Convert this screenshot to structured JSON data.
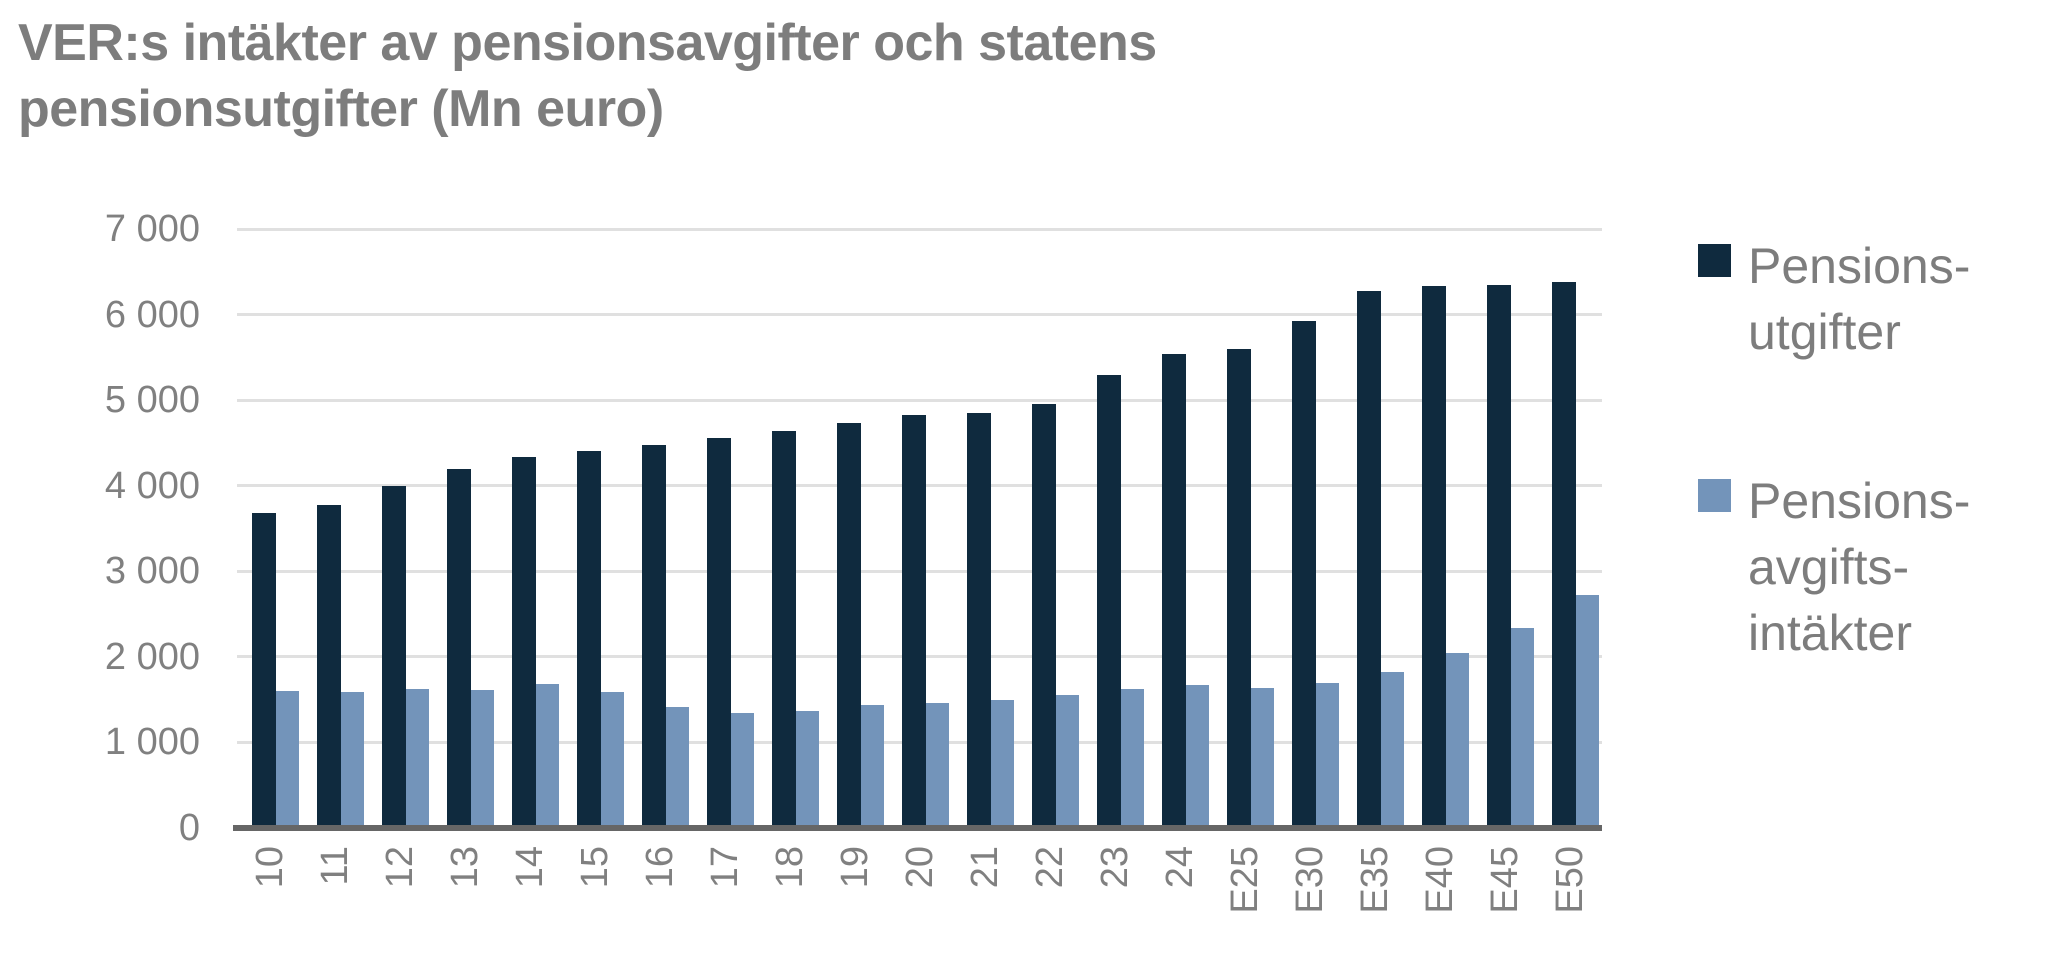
{
  "title": {
    "text": "VER:s intäkter av pensionsavgifter och statens pensionsutgifter (Mn euro)",
    "line1": "VER:s intäkter av pensionsavgifter och statens",
    "line2": "pensionsutgifter (Mn euro)",
    "color": "#7d7d7d"
  },
  "colors": {
    "background": "#ffffff",
    "title_text": "#7d7d7d",
    "axis_tick_text": "#808080",
    "gridline": "#e0e0e0",
    "axis_line": "#666666",
    "series_dark": "#0f2a3e",
    "series_light": "#7394ba"
  },
  "chart_data": {
    "type": "bar",
    "title": "VER:s intäkter av pensionsavgifter och statens pensionsutgifter (Mn euro)",
    "xlabel": "",
    "ylabel": "",
    "categories": [
      "10",
      "11",
      "12",
      "13",
      "14",
      "15",
      "16",
      "17",
      "18",
      "19",
      "20",
      "21",
      "22",
      "23",
      "24",
      "E25",
      "E30",
      "E35",
      "E40",
      "E45",
      "E50"
    ],
    "series": [
      {
        "name": "Pensionsutgifter",
        "legend_label": "Pensions-utgifter",
        "color": "#0f2a3e",
        "values": [
          3680,
          3780,
          4000,
          4190,
          4330,
          4410,
          4480,
          4560,
          4640,
          4730,
          4830,
          4850,
          4950,
          5290,
          5540,
          5600,
          5930,
          6270,
          6330,
          6350,
          6380
        ]
      },
      {
        "name": "Pensionsavgiftsintäkter",
        "legend_label": "Pensions-avgifts-intäkter",
        "color": "#7394ba",
        "values": [
          1600,
          1590,
          1620,
          1610,
          1680,
          1590,
          1420,
          1340,
          1370,
          1440,
          1460,
          1500,
          1560,
          1630,
          1670,
          1640,
          1690,
          1820,
          2050,
          2340,
          2720
        ]
      }
    ],
    "ylim": [
      0,
      7000
    ],
    "ytick_interval": 1000,
    "ytick_labels": [
      "0",
      "1 000",
      "2 000",
      "3 000",
      "4 000",
      "5 000",
      "6 000",
      "7 000"
    ],
    "grid": true,
    "legend_position": "right",
    "x_labels_rotation": -90
  },
  "legend": {
    "items": [
      {
        "lines": [
          "Pensions-",
          "utgifter"
        ],
        "color": "#0f2a3e"
      },
      {
        "lines": [
          "Pensions-",
          "avgifts-",
          "intäkter"
        ],
        "color": "#7394ba"
      }
    ]
  }
}
